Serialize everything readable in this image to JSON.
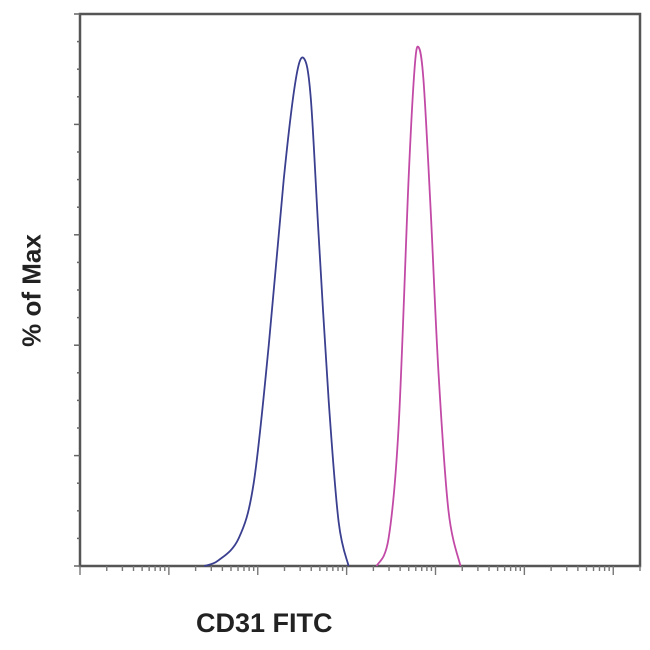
{
  "chart_data": {
    "type": "line",
    "title": "",
    "xlabel": "CD31 FITC",
    "ylabel": "% of Max",
    "x_scale": "log",
    "xlim": [
      1,
      2000000
    ],
    "ylim": [
      0,
      100
    ],
    "grid": false,
    "legend": "none",
    "series": [
      {
        "color": "#3a3f8f",
        "x": [
          25,
          36,
          61,
          90,
          133,
          196,
          267,
          329,
          394,
          484,
          628,
          813,
          1052
        ],
        "y": [
          0,
          1,
          5,
          15,
          40,
          70,
          88,
          92,
          85,
          60,
          30,
          8,
          0
        ]
      },
      {
        "color": "#c24aa6",
        "x": [
          2173,
          2965,
          3839,
          4977,
          5808,
          6442,
          7328,
          8790,
          10810,
          14000,
          19090
        ],
        "y": [
          0,
          5,
          25,
          70,
          90,
          94,
          88,
          65,
          35,
          10,
          0
        ]
      }
    ]
  }
}
